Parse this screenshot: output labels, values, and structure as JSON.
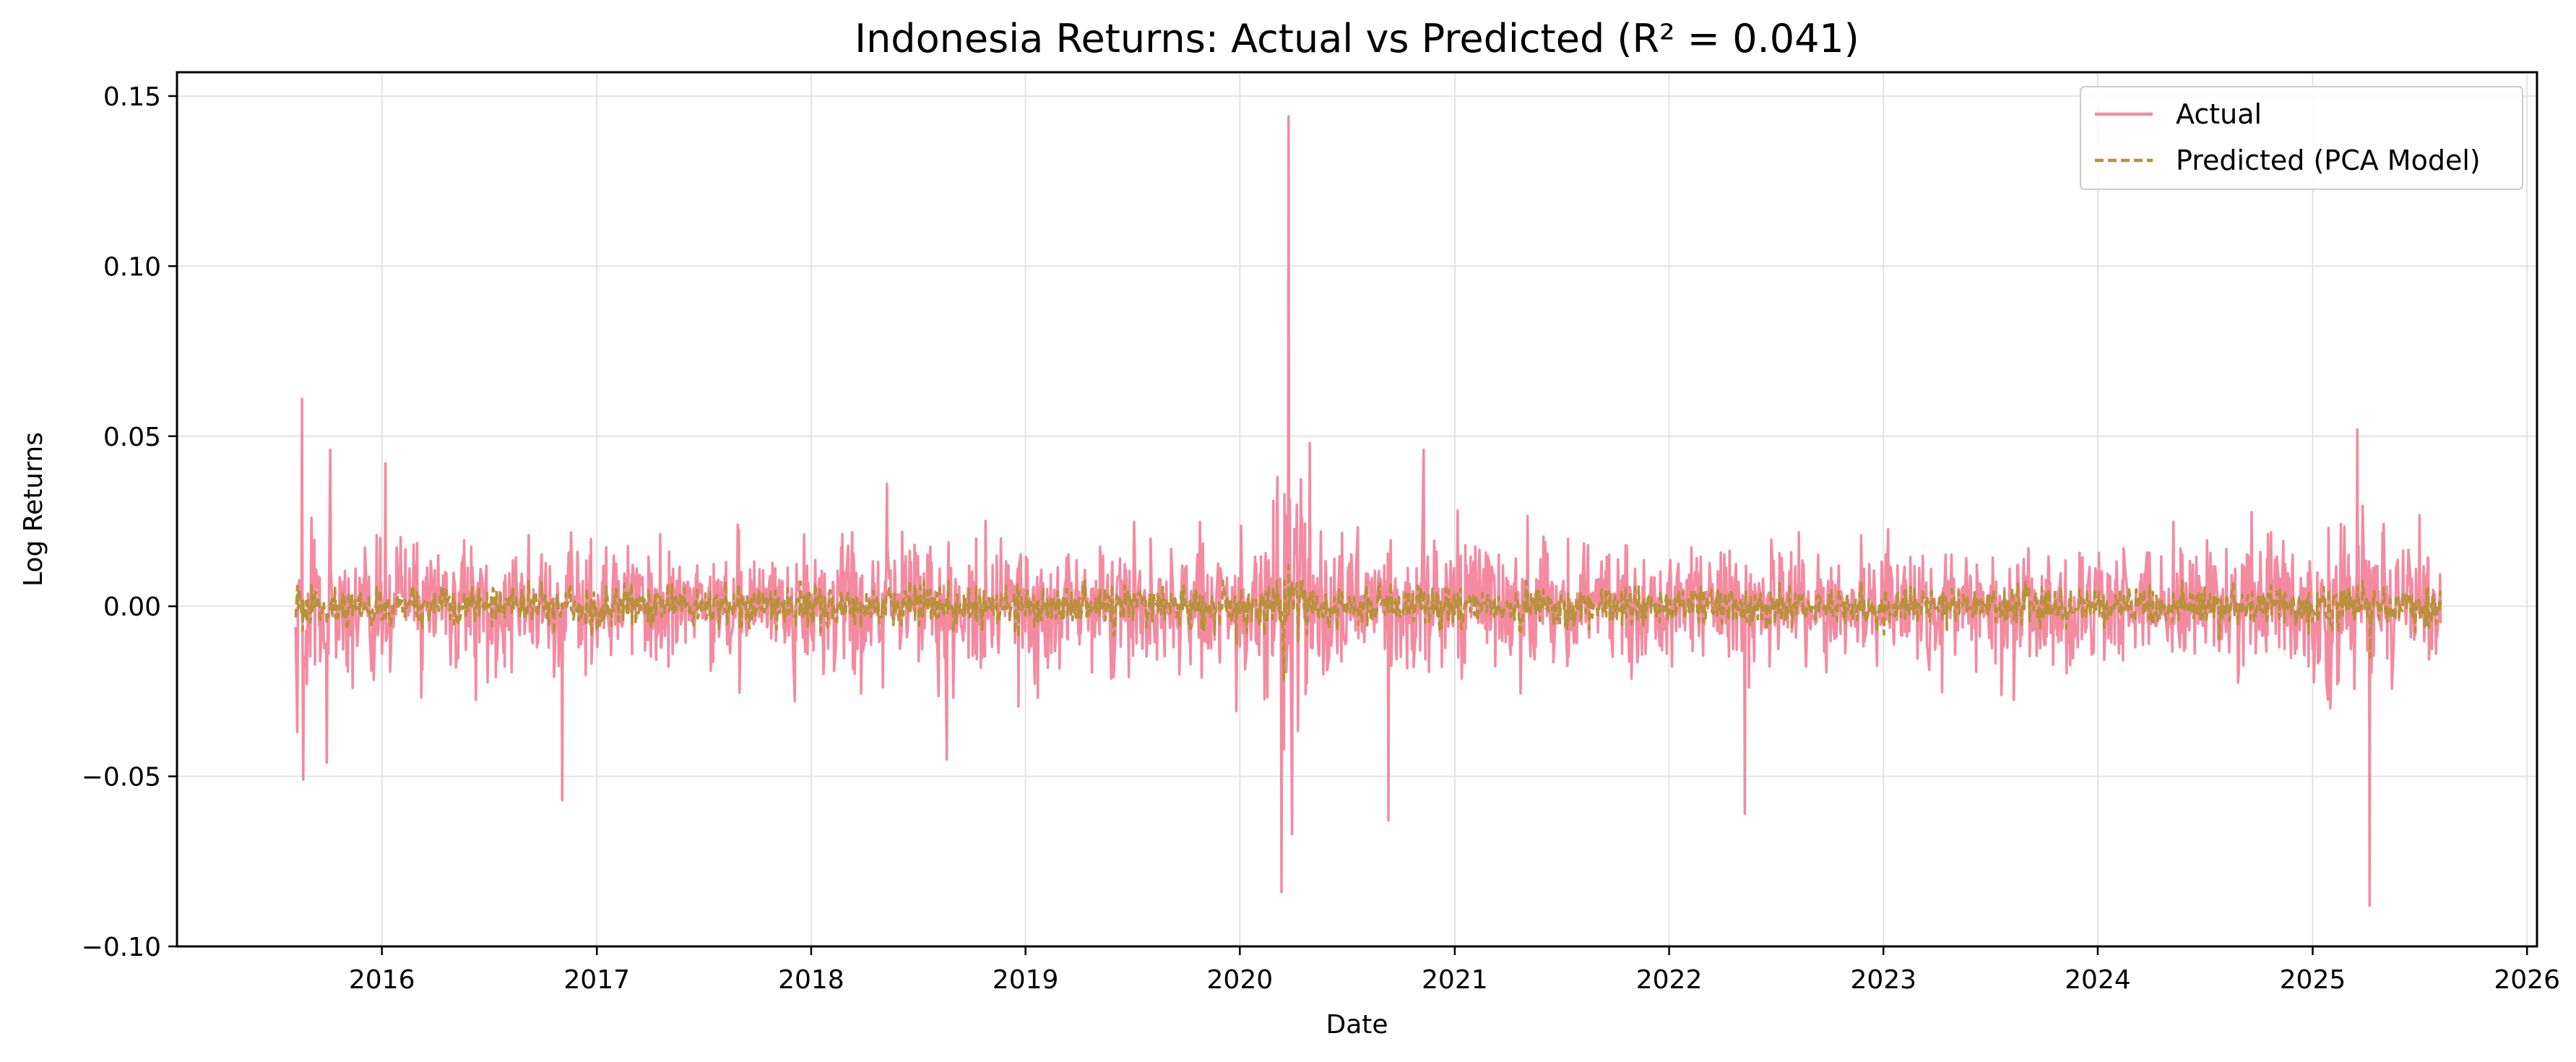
{
  "chart_data": {
    "type": "line",
    "title": "Indonesia Returns: Actual vs Predicted (R² = 0.041)",
    "xlabel": "Date",
    "ylabel": "Log Returns",
    "xlim": [
      "2015-01-17",
      "2026-01-18"
    ],
    "ylim": [
      -0.1,
      0.157
    ],
    "x_ticks": [
      "2016",
      "2017",
      "2018",
      "2019",
      "2020",
      "2021",
      "2022",
      "2023",
      "2024",
      "2025",
      "2026"
    ],
    "y_ticks": [
      "0.15",
      "0.10",
      "0.05",
      "0.00",
      "−0.05",
      "−0.10"
    ],
    "grid": true,
    "legend_position": "upper right",
    "date_range": [
      "2015-08-07",
      "2025-08-07"
    ],
    "series": [
      {
        "name": "Actual",
        "color": "#f48aa0",
        "style": "solid",
        "sampling": "daily trading returns (~2,500 points), representative peaks listed",
        "notable_points": [
          {
            "x": "2015-08-10",
            "y": -0.037
          },
          {
            "x": "2015-08-18",
            "y": 0.061
          },
          {
            "x": "2015-08-20",
            "y": -0.051
          },
          {
            "x": "2015-09-29",
            "y": -0.046
          },
          {
            "x": "2015-10-05",
            "y": 0.046
          },
          {
            "x": "2016-01-07",
            "y": 0.042
          },
          {
            "x": "2016-11-03",
            "y": -0.057
          },
          {
            "x": "2018-05-10",
            "y": 0.036
          },
          {
            "x": "2018-08-20",
            "y": -0.045
          },
          {
            "x": "2020-03-05",
            "y": 0.038
          },
          {
            "x": "2020-03-12",
            "y": -0.084
          },
          {
            "x": "2020-03-24",
            "y": 0.144
          },
          {
            "x": "2020-03-30",
            "y": -0.067
          },
          {
            "x": "2020-04-29",
            "y": 0.048
          },
          {
            "x": "2020-09-10",
            "y": -0.063
          },
          {
            "x": "2020-11-09",
            "y": 0.046
          },
          {
            "x": "2022-05-10",
            "y": -0.061
          },
          {
            "x": "2025-03-18",
            "y": 0.052
          },
          {
            "x": "2025-04-08",
            "y": -0.088
          }
        ]
      },
      {
        "name": "Predicted (PCA Model)",
        "color": "#b8913a",
        "style": "dashed",
        "typical_range": [
          -0.012,
          0.008
        ],
        "notable_points": [
          {
            "x": "2020-03-16",
            "y": -0.022
          },
          {
            "x": "2020-03-24",
            "y": 0.012
          },
          {
            "x": "2025-04-09",
            "y": -0.015
          }
        ]
      }
    ]
  }
}
